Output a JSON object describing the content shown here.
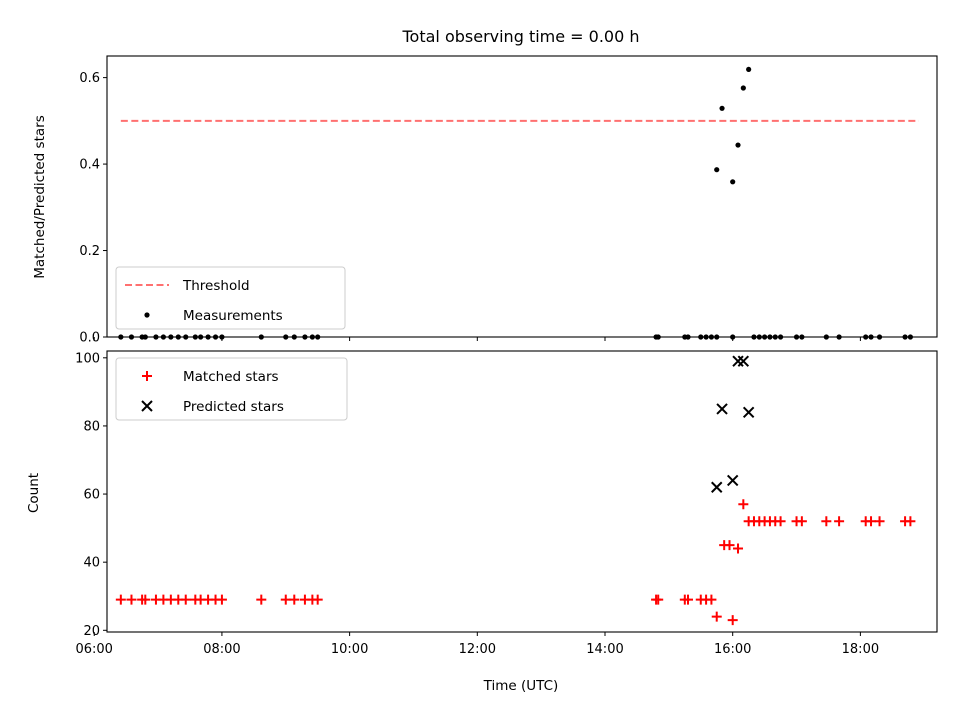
{
  "chart_data": [
    {
      "type": "scatter",
      "title": "Total observing time = 0.00 h",
      "xlabel": "",
      "ylabel": "Matched/Predicted stars",
      "xlim": [
        "06:12",
        "19:12"
      ],
      "ylim": [
        0,
        0.65
      ],
      "y_ticks": [
        {
          "v": 0.0,
          "label": "0.0"
        },
        {
          "v": 0.2,
          "label": "0.2"
        },
        {
          "v": 0.4,
          "label": "0.4"
        },
        {
          "v": 0.6,
          "label": "0.6"
        }
      ],
      "x_tick_labels": "hidden",
      "legend": {
        "placement": "lower left",
        "entries": [
          {
            "label": "Threshold",
            "style": "dashed-line",
            "color": "#ff7070"
          },
          {
            "label": "Measurements",
            "style": "dot",
            "color": "#000000"
          }
        ]
      },
      "series": [
        {
          "name": "Threshold",
          "kind": "line",
          "color": "#ff7070",
          "x": [
            "06:25",
            "18:55"
          ],
          "y": [
            0.5,
            0.5
          ]
        },
        {
          "name": "Measurements",
          "kind": "dot",
          "color": "#000000",
          "points": [
            {
              "x": "06:25",
              "y": 0.0
            },
            {
              "x": "06:35",
              "y": 0.0
            },
            {
              "x": "06:45",
              "y": 0.0
            },
            {
              "x": "06:48",
              "y": 0.0
            },
            {
              "x": "06:58",
              "y": 0.0
            },
            {
              "x": "07:05",
              "y": 0.0
            },
            {
              "x": "07:12",
              "y": 0.0
            },
            {
              "x": "07:19",
              "y": 0.0
            },
            {
              "x": "07:26",
              "y": 0.0
            },
            {
              "x": "07:35",
              "y": 0.0
            },
            {
              "x": "07:40",
              "y": 0.0
            },
            {
              "x": "07:47",
              "y": 0.0
            },
            {
              "x": "07:54",
              "y": 0.0
            },
            {
              "x": "08:00",
              "y": 0.0
            },
            {
              "x": "08:37",
              "y": 0.0
            },
            {
              "x": "09:00",
              "y": 0.0
            },
            {
              "x": "09:08",
              "y": 0.0
            },
            {
              "x": "09:18",
              "y": 0.0
            },
            {
              "x": "09:25",
              "y": 0.0
            },
            {
              "x": "09:30",
              "y": 0.0
            },
            {
              "x": "14:48",
              "y": 0.0
            },
            {
              "x": "14:50",
              "y": 0.0
            },
            {
              "x": "15:15",
              "y": 0.0
            },
            {
              "x": "15:18",
              "y": 0.0
            },
            {
              "x": "15:30",
              "y": 0.0
            },
            {
              "x": "15:35",
              "y": 0.0
            },
            {
              "x": "15:40",
              "y": 0.0
            },
            {
              "x": "15:45",
              "y": 0.0
            },
            {
              "x": "16:00",
              "y": 0.0
            },
            {
              "x": "16:20",
              "y": 0.0
            },
            {
              "x": "16:25",
              "y": 0.0
            },
            {
              "x": "16:30",
              "y": 0.0
            },
            {
              "x": "16:35",
              "y": 0.0
            },
            {
              "x": "16:40",
              "y": 0.0
            },
            {
              "x": "16:45",
              "y": 0.0
            },
            {
              "x": "17:00",
              "y": 0.0
            },
            {
              "x": "17:05",
              "y": 0.0
            },
            {
              "x": "17:28",
              "y": 0.0
            },
            {
              "x": "17:40",
              "y": 0.0
            },
            {
              "x": "18:05",
              "y": 0.0
            },
            {
              "x": "18:10",
              "y": 0.0
            },
            {
              "x": "18:18",
              "y": 0.0
            },
            {
              "x": "18:42",
              "y": 0.0
            },
            {
              "x": "18:47",
              "y": 0.0
            },
            {
              "x": "15:45",
              "y": 0.387
            },
            {
              "x": "15:50",
              "y": 0.529
            },
            {
              "x": "16:00",
              "y": 0.359
            },
            {
              "x": "16:05",
              "y": 0.444
            },
            {
              "x": "16:10",
              "y": 0.576
            },
            {
              "x": "16:15",
              "y": 0.619
            }
          ]
        }
      ]
    },
    {
      "type": "scatter",
      "title": "",
      "xlabel": "Time (UTC)",
      "ylabel": "Count",
      "xlim": [
        "06:12",
        "19:12"
      ],
      "ylim": [
        19.5,
        102
      ],
      "y_ticks": [
        {
          "v": 20,
          "label": "20"
        },
        {
          "v": 40,
          "label": "40"
        },
        {
          "v": 60,
          "label": "60"
        },
        {
          "v": 80,
          "label": "80"
        },
        {
          "v": 100,
          "label": "100"
        }
      ],
      "x_ticks": [
        "06:00",
        "08:00",
        "10:00",
        "12:00",
        "14:00",
        "16:00",
        "18:00"
      ],
      "legend": {
        "placement": "upper left",
        "entries": [
          {
            "label": "Matched stars",
            "style": "plus",
            "color": "#ff0000"
          },
          {
            "label": "Predicted stars",
            "style": "x",
            "color": "#000000"
          }
        ]
      },
      "series": [
        {
          "name": "Matched stars",
          "kind": "plus",
          "color": "#ff0000",
          "points": [
            {
              "x": "06:25",
              "y": 29
            },
            {
              "x": "06:35",
              "y": 29
            },
            {
              "x": "06:45",
              "y": 29
            },
            {
              "x": "06:48",
              "y": 29
            },
            {
              "x": "06:58",
              "y": 29
            },
            {
              "x": "07:05",
              "y": 29
            },
            {
              "x": "07:12",
              "y": 29
            },
            {
              "x": "07:19",
              "y": 29
            },
            {
              "x": "07:26",
              "y": 29
            },
            {
              "x": "07:35",
              "y": 29
            },
            {
              "x": "07:40",
              "y": 29
            },
            {
              "x": "07:47",
              "y": 29
            },
            {
              "x": "07:54",
              "y": 29
            },
            {
              "x": "08:00",
              "y": 29
            },
            {
              "x": "08:37",
              "y": 29
            },
            {
              "x": "09:00",
              "y": 29
            },
            {
              "x": "09:08",
              "y": 29
            },
            {
              "x": "09:18",
              "y": 29
            },
            {
              "x": "09:25",
              "y": 29
            },
            {
              "x": "09:30",
              "y": 29
            },
            {
              "x": "14:48",
              "y": 29
            },
            {
              "x": "14:50",
              "y": 29
            },
            {
              "x": "15:15",
              "y": 29
            },
            {
              "x": "15:18",
              "y": 29
            },
            {
              "x": "15:30",
              "y": 29
            },
            {
              "x": "15:35",
              "y": 29
            },
            {
              "x": "15:40",
              "y": 29
            },
            {
              "x": "15:45",
              "y": 24
            },
            {
              "x": "15:52",
              "y": 45
            },
            {
              "x": "15:57",
              "y": 45
            },
            {
              "x": "16:00",
              "y": 23
            },
            {
              "x": "16:05",
              "y": 44
            },
            {
              "x": "16:10",
              "y": 57
            },
            {
              "x": "16:15",
              "y": 52
            },
            {
              "x": "16:20",
              "y": 52
            },
            {
              "x": "16:25",
              "y": 52
            },
            {
              "x": "16:30",
              "y": 52
            },
            {
              "x": "16:35",
              "y": 52
            },
            {
              "x": "16:40",
              "y": 52
            },
            {
              "x": "16:45",
              "y": 52
            },
            {
              "x": "17:00",
              "y": 52
            },
            {
              "x": "17:05",
              "y": 52
            },
            {
              "x": "17:28",
              "y": 52
            },
            {
              "x": "17:40",
              "y": 52
            },
            {
              "x": "18:05",
              "y": 52
            },
            {
              "x": "18:10",
              "y": 52
            },
            {
              "x": "18:18",
              "y": 52
            },
            {
              "x": "18:42",
              "y": 52
            },
            {
              "x": "18:47",
              "y": 52
            }
          ]
        },
        {
          "name": "Predicted stars",
          "kind": "x",
          "color": "#000000",
          "points": [
            {
              "x": "15:45",
              "y": 62
            },
            {
              "x": "15:50",
              "y": 85
            },
            {
              "x": "16:00",
              "y": 64
            },
            {
              "x": "16:05",
              "y": 99
            },
            {
              "x": "16:10",
              "y": 99
            },
            {
              "x": "16:15",
              "y": 84
            }
          ]
        }
      ]
    }
  ]
}
